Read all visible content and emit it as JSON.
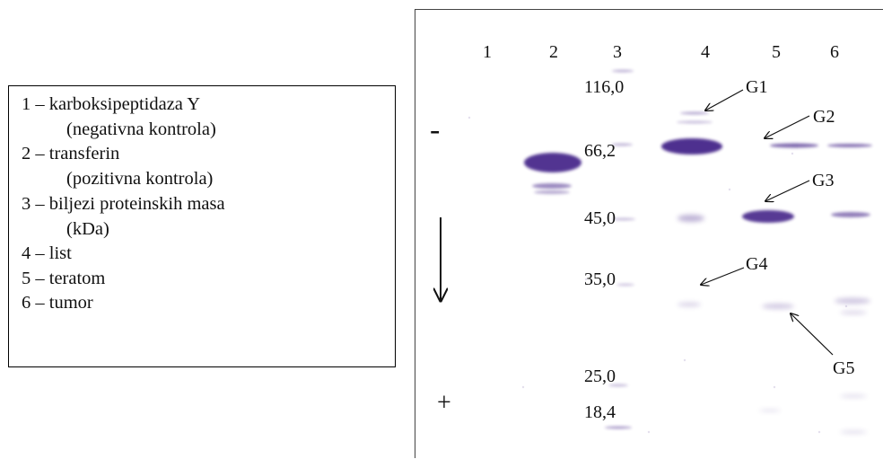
{
  "legend": {
    "items": [
      {
        "text": "1 – karboksipeptidaza Y"
      },
      {
        "text": "(negativna kontrola)",
        "sub": true
      },
      {
        "text": "2 – transferin"
      },
      {
        "text": "(pozitivna kontrola)",
        "sub": true
      },
      {
        "text": "3 – biljezi proteinskih masa"
      },
      {
        "text": "(kDa)",
        "sub": true
      },
      {
        "text": "4 – list"
      },
      {
        "text": "5 – teratom"
      },
      {
        "text": "6 – tumor"
      }
    ]
  },
  "gel": {
    "lanes": [
      {
        "label": "1"
      },
      {
        "label": "2"
      },
      {
        "label": "3"
      },
      {
        "label": "4"
      },
      {
        "label": "5"
      },
      {
        "label": "6"
      }
    ],
    "markers": [
      {
        "label": "116,0"
      },
      {
        "label": "66,2"
      },
      {
        "label": "45,0"
      },
      {
        "label": "35,0"
      },
      {
        "label": "25,0"
      },
      {
        "label": "18,4"
      }
    ],
    "glyco_labels": [
      {
        "label": "G1"
      },
      {
        "label": "G2"
      },
      {
        "label": "G3"
      },
      {
        "label": "G4"
      },
      {
        "label": "G5"
      }
    ],
    "minus_sign": "-",
    "plus_sign": "+",
    "band_color": "#4a2a8c"
  }
}
